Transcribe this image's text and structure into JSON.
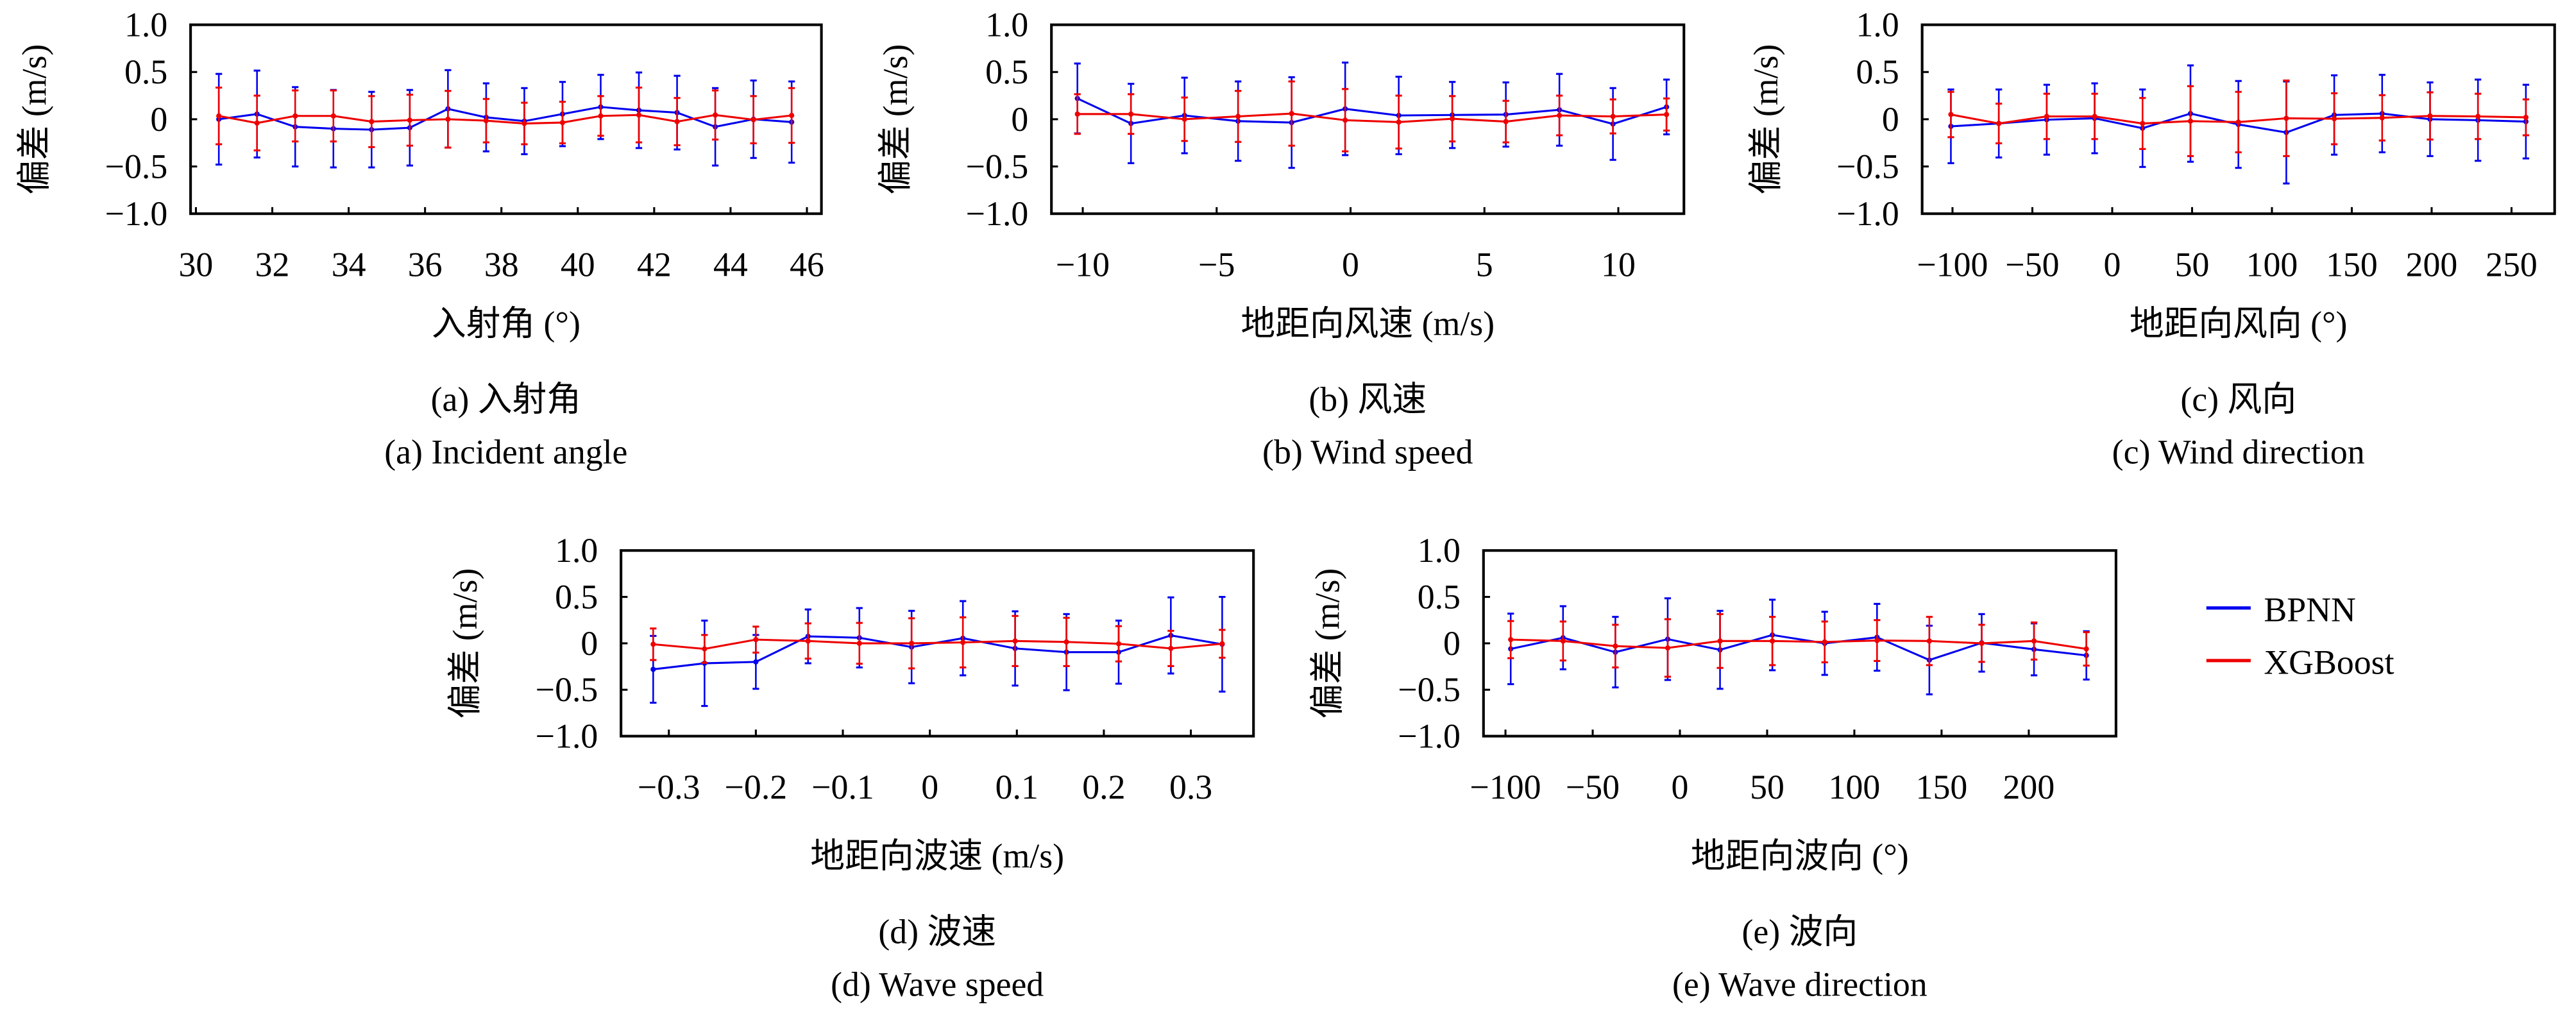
{
  "colors": {
    "BPNN": "#0000ee",
    "XGBoost": "#ee0000",
    "axes": "#000000"
  },
  "legend": {
    "placement": "right",
    "items": [
      {
        "name": "BPNN",
        "color": "#0000ee"
      },
      {
        "name": "XGBoost",
        "color": "#ee0000"
      }
    ]
  },
  "chart_data": [
    {
      "type": "line",
      "error_bars": true,
      "caption_cn": "(a) 入射角",
      "caption_en": "(a) Incident angle",
      "xlabel": "入射角 (°)",
      "ylabel": "偏差 (m/s)",
      "xlim": [
        29.86,
        46.38
      ],
      "ylim": [
        -1.0,
        1.0
      ],
      "xticks": [
        30,
        32,
        34,
        36,
        38,
        40,
        42,
        44,
        46
      ],
      "xtick_labels": [
        "30",
        "32",
        "34",
        "36",
        "38",
        "40",
        "42",
        "44",
        "46"
      ],
      "yticks": [
        1.0,
        0.5,
        0,
        -0.5,
        -1.0
      ],
      "ytick_labels": [
        "1.0",
        "0.5",
        "0",
        "−0.5",
        "−1.0"
      ],
      "x": [
        30.6,
        31.6,
        32.6,
        33.6,
        34.6,
        35.6,
        36.6,
        37.6,
        38.6,
        39.6,
        40.6,
        41.6,
        42.6,
        43.6,
        44.6,
        45.6
      ],
      "series": [
        {
          "name": "BPNN",
          "y": [
            0,
            0.055,
            -0.08,
            -0.1,
            -0.11,
            -0.09,
            0.11,
            0.02,
            -0.02,
            0.055,
            0.13,
            0.095,
            0.07,
            -0.08,
            0,
            -0.03
          ],
          "err": [
            0.48,
            0.46,
            0.42,
            0.41,
            0.4,
            0.4,
            0.41,
            0.36,
            0.35,
            0.34,
            0.34,
            0.4,
            0.39,
            0.41,
            0.41,
            0.43
          ]
        },
        {
          "name": "XGBoost",
          "y": [
            0.035,
            -0.04,
            0.035,
            0.035,
            -0.025,
            -0.01,
            0,
            -0.015,
            -0.045,
            -0.035,
            0.035,
            0.045,
            -0.025,
            0.045,
            -0.005,
            0.04
          ],
          "err": [
            0.3,
            0.29,
            0.27,
            0.27,
            0.27,
            0.27,
            0.3,
            0.23,
            0.22,
            0.22,
            0.21,
            0.29,
            0.25,
            0.26,
            0.25,
            0.29
          ]
        }
      ]
    },
    {
      "type": "line",
      "error_bars": true,
      "caption_cn": "(b) 风速",
      "caption_en": "(b) Wind speed",
      "xlabel": "地距向风速 (m/s)",
      "ylabel": "偏差 (m/s)",
      "xlim": [
        -11.17,
        12.45
      ],
      "ylim": [
        -1.0,
        1.0
      ],
      "xticks": [
        -10,
        -5,
        0,
        5,
        10
      ],
      "xtick_labels": [
        "−10",
        "−5",
        "0",
        "5",
        "10"
      ],
      "yticks": [
        1.0,
        0.5,
        0,
        -0.5,
        -1.0
      ],
      "ytick_labels": [
        "1.0",
        "0.5",
        "0",
        "−0.5",
        "−1.0"
      ],
      "x": [
        -10.2,
        -8.2,
        -6.2,
        -4.2,
        -2.2,
        -0.2,
        1.8,
        3.8,
        5.8,
        7.8,
        9.8,
        11.8
      ],
      "series": [
        {
          "name": "BPNN",
          "y": [
            0.22,
            -0.045,
            0.04,
            -0.02,
            -0.035,
            0.11,
            0.04,
            0.045,
            0.05,
            0.1,
            -0.05,
            0.13
          ],
          "err": [
            0.37,
            0.42,
            0.4,
            0.42,
            0.48,
            0.49,
            0.41,
            0.35,
            0.34,
            0.38,
            0.38,
            0.29
          ]
        },
        {
          "name": "XGBoost",
          "y": [
            0.055,
            0.055,
            0,
            0.03,
            0.06,
            -0.01,
            -0.03,
            0.005,
            -0.025,
            0.04,
            0.03,
            0.05
          ],
          "err": [
            0.21,
            0.21,
            0.23,
            0.27,
            0.34,
            0.33,
            0.28,
            0.24,
            0.22,
            0.21,
            0.18,
            0.17
          ]
        }
      ]
    },
    {
      "type": "line",
      "error_bars": true,
      "caption_cn": "(c) 风向",
      "caption_en": "(c) Wind direction",
      "xlabel": "地距向风向 (°)",
      "ylabel": "偏差 (m/s)",
      "xlim": [
        -119,
        277
      ],
      "ylim": [
        -1.0,
        1.0
      ],
      "xticks": [
        -100,
        -50,
        0,
        50,
        100,
        150,
        200,
        250
      ],
      "xtick_labels": [
        "−100",
        "−50",
        "0",
        "50",
        "100",
        "150",
        "200",
        "250"
      ],
      "yticks": [
        1.0,
        0.5,
        0,
        -0.5,
        -1.0
      ],
      "ytick_labels": [
        "1.0",
        "0.5",
        "0",
        "−0.5",
        "−1.0"
      ],
      "x": [
        -101,
        -71,
        -41,
        -11,
        19,
        49,
        79,
        109,
        139,
        169,
        199,
        229,
        259
      ],
      "series": [
        {
          "name": "BPNN",
          "y": [
            -0.075,
            -0.045,
            -0.005,
            0.01,
            -0.095,
            0.06,
            -0.055,
            -0.14,
            0.045,
            0.06,
            0,
            -0.01,
            -0.025
          ],
          "err": [
            0.39,
            0.36,
            0.37,
            0.37,
            0.41,
            0.51,
            0.46,
            0.54,
            0.42,
            0.41,
            0.39,
            0.43,
            0.39
          ]
        },
        {
          "name": "XGBoost",
          "y": [
            0.05,
            -0.045,
            0.03,
            0.03,
            -0.045,
            -0.02,
            -0.03,
            0.01,
            0.005,
            0.015,
            0.035,
            0.03,
            0.02
          ],
          "err": [
            0.24,
            0.21,
            0.24,
            0.24,
            0.27,
            0.37,
            0.32,
            0.4,
            0.27,
            0.24,
            0.25,
            0.24,
            0.19
          ]
        }
      ]
    },
    {
      "type": "line",
      "error_bars": true,
      "caption_cn": "(d) 波速",
      "caption_en": "(d) Wave speed",
      "xlabel": "地距向波速 (m/s)",
      "ylabel": "偏差 (m/s)",
      "xlim": [
        -0.355,
        0.372
      ],
      "ylim": [
        -1.0,
        1.0
      ],
      "xticks": [
        -0.3,
        -0.2,
        -0.1,
        0,
        0.1,
        0.2,
        0.3
      ],
      "xtick_labels": [
        "−0.3",
        "−0.2",
        "−0.1",
        "0",
        "0.1",
        "0.2",
        "0.3"
      ],
      "yticks": [
        1.0,
        0.5,
        0,
        -0.5,
        -1.0
      ],
      "ytick_labels": [
        "1.0",
        "0.5",
        "0",
        "−0.5",
        "−1.0"
      ],
      "x": [
        -0.318,
        -0.259,
        -0.2,
        -0.14,
        -0.081,
        -0.021,
        0.038,
        0.098,
        0.157,
        0.217,
        0.277,
        0.336
      ],
      "series": [
        {
          "name": "BPNN",
          "y": [
            -0.28,
            -0.215,
            -0.2,
            0.075,
            0.06,
            -0.04,
            0.055,
            -0.055,
            -0.095,
            -0.095,
            0.085,
            -0.01
          ],
          "err": [
            0.36,
            0.46,
            0.29,
            0.29,
            0.32,
            0.39,
            0.4,
            0.4,
            0.41,
            0.34,
            0.41,
            0.51
          ]
        },
        {
          "name": "XGBoost",
          "y": [
            -0.01,
            -0.06,
            0.04,
            0.025,
            0,
            0,
            0.01,
            0.025,
            0.015,
            -0.005,
            -0.055,
            -0.005
          ],
          "err": [
            0.17,
            0.15,
            0.14,
            0.19,
            0.22,
            0.27,
            0.27,
            0.27,
            0.26,
            0.19,
            0.19,
            0.15
          ]
        }
      ]
    },
    {
      "type": "line",
      "error_bars": true,
      "caption_cn": "(e) 波向",
      "caption_en": "(e) Wave direction",
      "xlabel": "地距向波向 (°)",
      "ylabel": "偏差 (m/s)",
      "xlim": [
        -112.6,
        250
      ],
      "ylim": [
        -1.0,
        1.0
      ],
      "xticks": [
        -100,
        -50,
        0,
        50,
        100,
        150,
        200
      ],
      "xtick_labels": [
        "−100",
        "−50",
        "0",
        "50",
        "100",
        "150",
        "200"
      ],
      "yticks": [
        1.0,
        0.5,
        0,
        -0.5,
        -1.0
      ],
      "ytick_labels": [
        "1.0",
        "0.5",
        "0",
        "−0.5",
        "−1.0"
      ],
      "x": [
        -97,
        -67,
        -37,
        -7,
        23,
        53,
        83,
        113,
        143,
        173,
        203,
        233
      ],
      "series": [
        {
          "name": "BPNN",
          "y": [
            -0.06,
            0.06,
            -0.095,
            0.045,
            -0.07,
            0.09,
            0,
            0.065,
            -0.18,
            0.005,
            -0.065,
            -0.13
          ],
          "err": [
            0.38,
            0.34,
            0.38,
            0.44,
            0.42,
            0.38,
            0.34,
            0.36,
            0.37,
            0.31,
            0.28,
            0.26
          ]
        },
        {
          "name": "XGBoost",
          "y": [
            0.04,
            0.025,
            -0.03,
            -0.05,
            0.025,
            0.025,
            0.015,
            0.03,
            0.025,
            0,
            0.025,
            -0.06
          ],
          "err": [
            0.2,
            0.21,
            0.23,
            0.31,
            0.29,
            0.26,
            0.22,
            0.22,
            0.26,
            0.2,
            0.2,
            0.18
          ]
        }
      ]
    }
  ]
}
